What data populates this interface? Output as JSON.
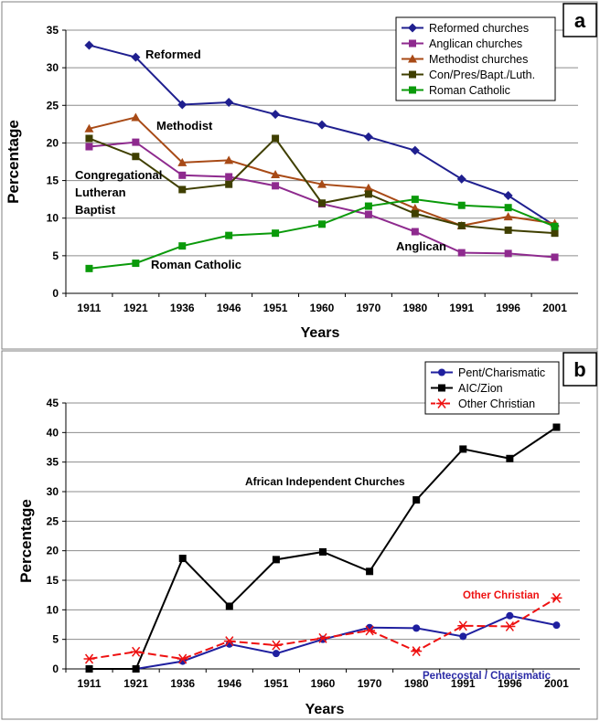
{
  "chart_data": [
    {
      "panel_label": "a",
      "type": "line",
      "xlabel": "Years",
      "ylabel": "Percentage",
      "ylim": [
        0,
        35
      ],
      "yticks": [
        "0",
        "5",
        "10",
        "15",
        "20",
        "25",
        "30",
        "35"
      ],
      "grid": "horizontal",
      "legend_position": "top-right",
      "categories": [
        "1911",
        "1921",
        "1936",
        "1946",
        "1951",
        "1960",
        "1970",
        "1980",
        "1991",
        "1996",
        "2001"
      ],
      "series": [
        {
          "name": "Reformed churches",
          "color": "#1f1f8f",
          "marker": "diamond",
          "values": [
            33.0,
            31.4,
            25.1,
            25.4,
            23.8,
            22.4,
            20.8,
            19.0,
            15.2,
            13.0,
            9.0
          ]
        },
        {
          "name": "Anglican churches",
          "color": "#8e2a8e",
          "marker": "square",
          "values": [
            19.5,
            20.1,
            15.7,
            15.5,
            14.3,
            11.9,
            10.5,
            8.2,
            5.4,
            5.3,
            4.8
          ]
        },
        {
          "name": "Methodist churches",
          "color": "#a84a16",
          "marker": "triangle",
          "values": [
            21.9,
            23.4,
            17.4,
            17.7,
            15.8,
            14.5,
            14.0,
            11.3,
            9.0,
            10.2,
            9.3
          ]
        },
        {
          "name": "Con/Pres/Bapt./Luth.",
          "color": "#3f3f00",
          "marker": "square",
          "values": [
            20.6,
            18.2,
            13.8,
            14.5,
            20.6,
            12.0,
            13.2,
            10.6,
            9.0,
            8.4,
            8.0
          ]
        },
        {
          "name": "Roman Catholic",
          "color": "#0a9a0a",
          "marker": "square",
          "values": [
            3.3,
            4.0,
            6.3,
            7.7,
            8.0,
            9.2,
            11.6,
            12.5,
            11.7,
            11.4,
            8.9
          ]
        }
      ],
      "annotations": [
        {
          "text": "Reformed"
        },
        {
          "text": "Methodist"
        },
        {
          "text": "Congregational"
        },
        {
          "text": "Lutheran"
        },
        {
          "text": "Baptist"
        },
        {
          "text": "Anglican"
        },
        {
          "text": "Roman Catholic"
        }
      ]
    },
    {
      "panel_label": "b",
      "type": "line",
      "xlabel": "Years",
      "ylabel": "Percentage",
      "ylim": [
        0,
        45
      ],
      "yticks": [
        "0",
        "5",
        "10",
        "15",
        "20",
        "25",
        "30",
        "35",
        "40",
        "45"
      ],
      "grid": "horizontal",
      "legend_position": "top-right",
      "categories": [
        "1911",
        "1921",
        "1936",
        "1946",
        "1951",
        "1960",
        "1970",
        "1980",
        "1991",
        "1996",
        "2001"
      ],
      "series": [
        {
          "name": "Pent/Charismatic",
          "color": "#1f1f9f",
          "marker": "circle",
          "values": [
            0.0,
            0.0,
            1.3,
            4.2,
            2.6,
            5.0,
            7.0,
            6.9,
            5.5,
            9.0,
            7.4
          ]
        },
        {
          "name": "AIC/Zion",
          "color": "#000000",
          "marker": "square",
          "values": [
            0.0,
            0.0,
            18.7,
            10.6,
            18.5,
            19.8,
            16.5,
            28.6,
            37.2,
            35.6,
            40.9
          ]
        },
        {
          "name": "Other Christian",
          "color": "#ee1111",
          "marker": "asterisk",
          "dashed": true,
          "values": [
            1.7,
            2.9,
            1.7,
            4.7,
            4.0,
            5.2,
            6.5,
            3.0,
            7.3,
            7.2,
            12.0
          ]
        }
      ],
      "annotations": [
        {
          "text": "African Independent Churches"
        },
        {
          "text": "Other Christian"
        },
        {
          "text": "Pentecostal / Charismatic"
        }
      ]
    }
  ]
}
